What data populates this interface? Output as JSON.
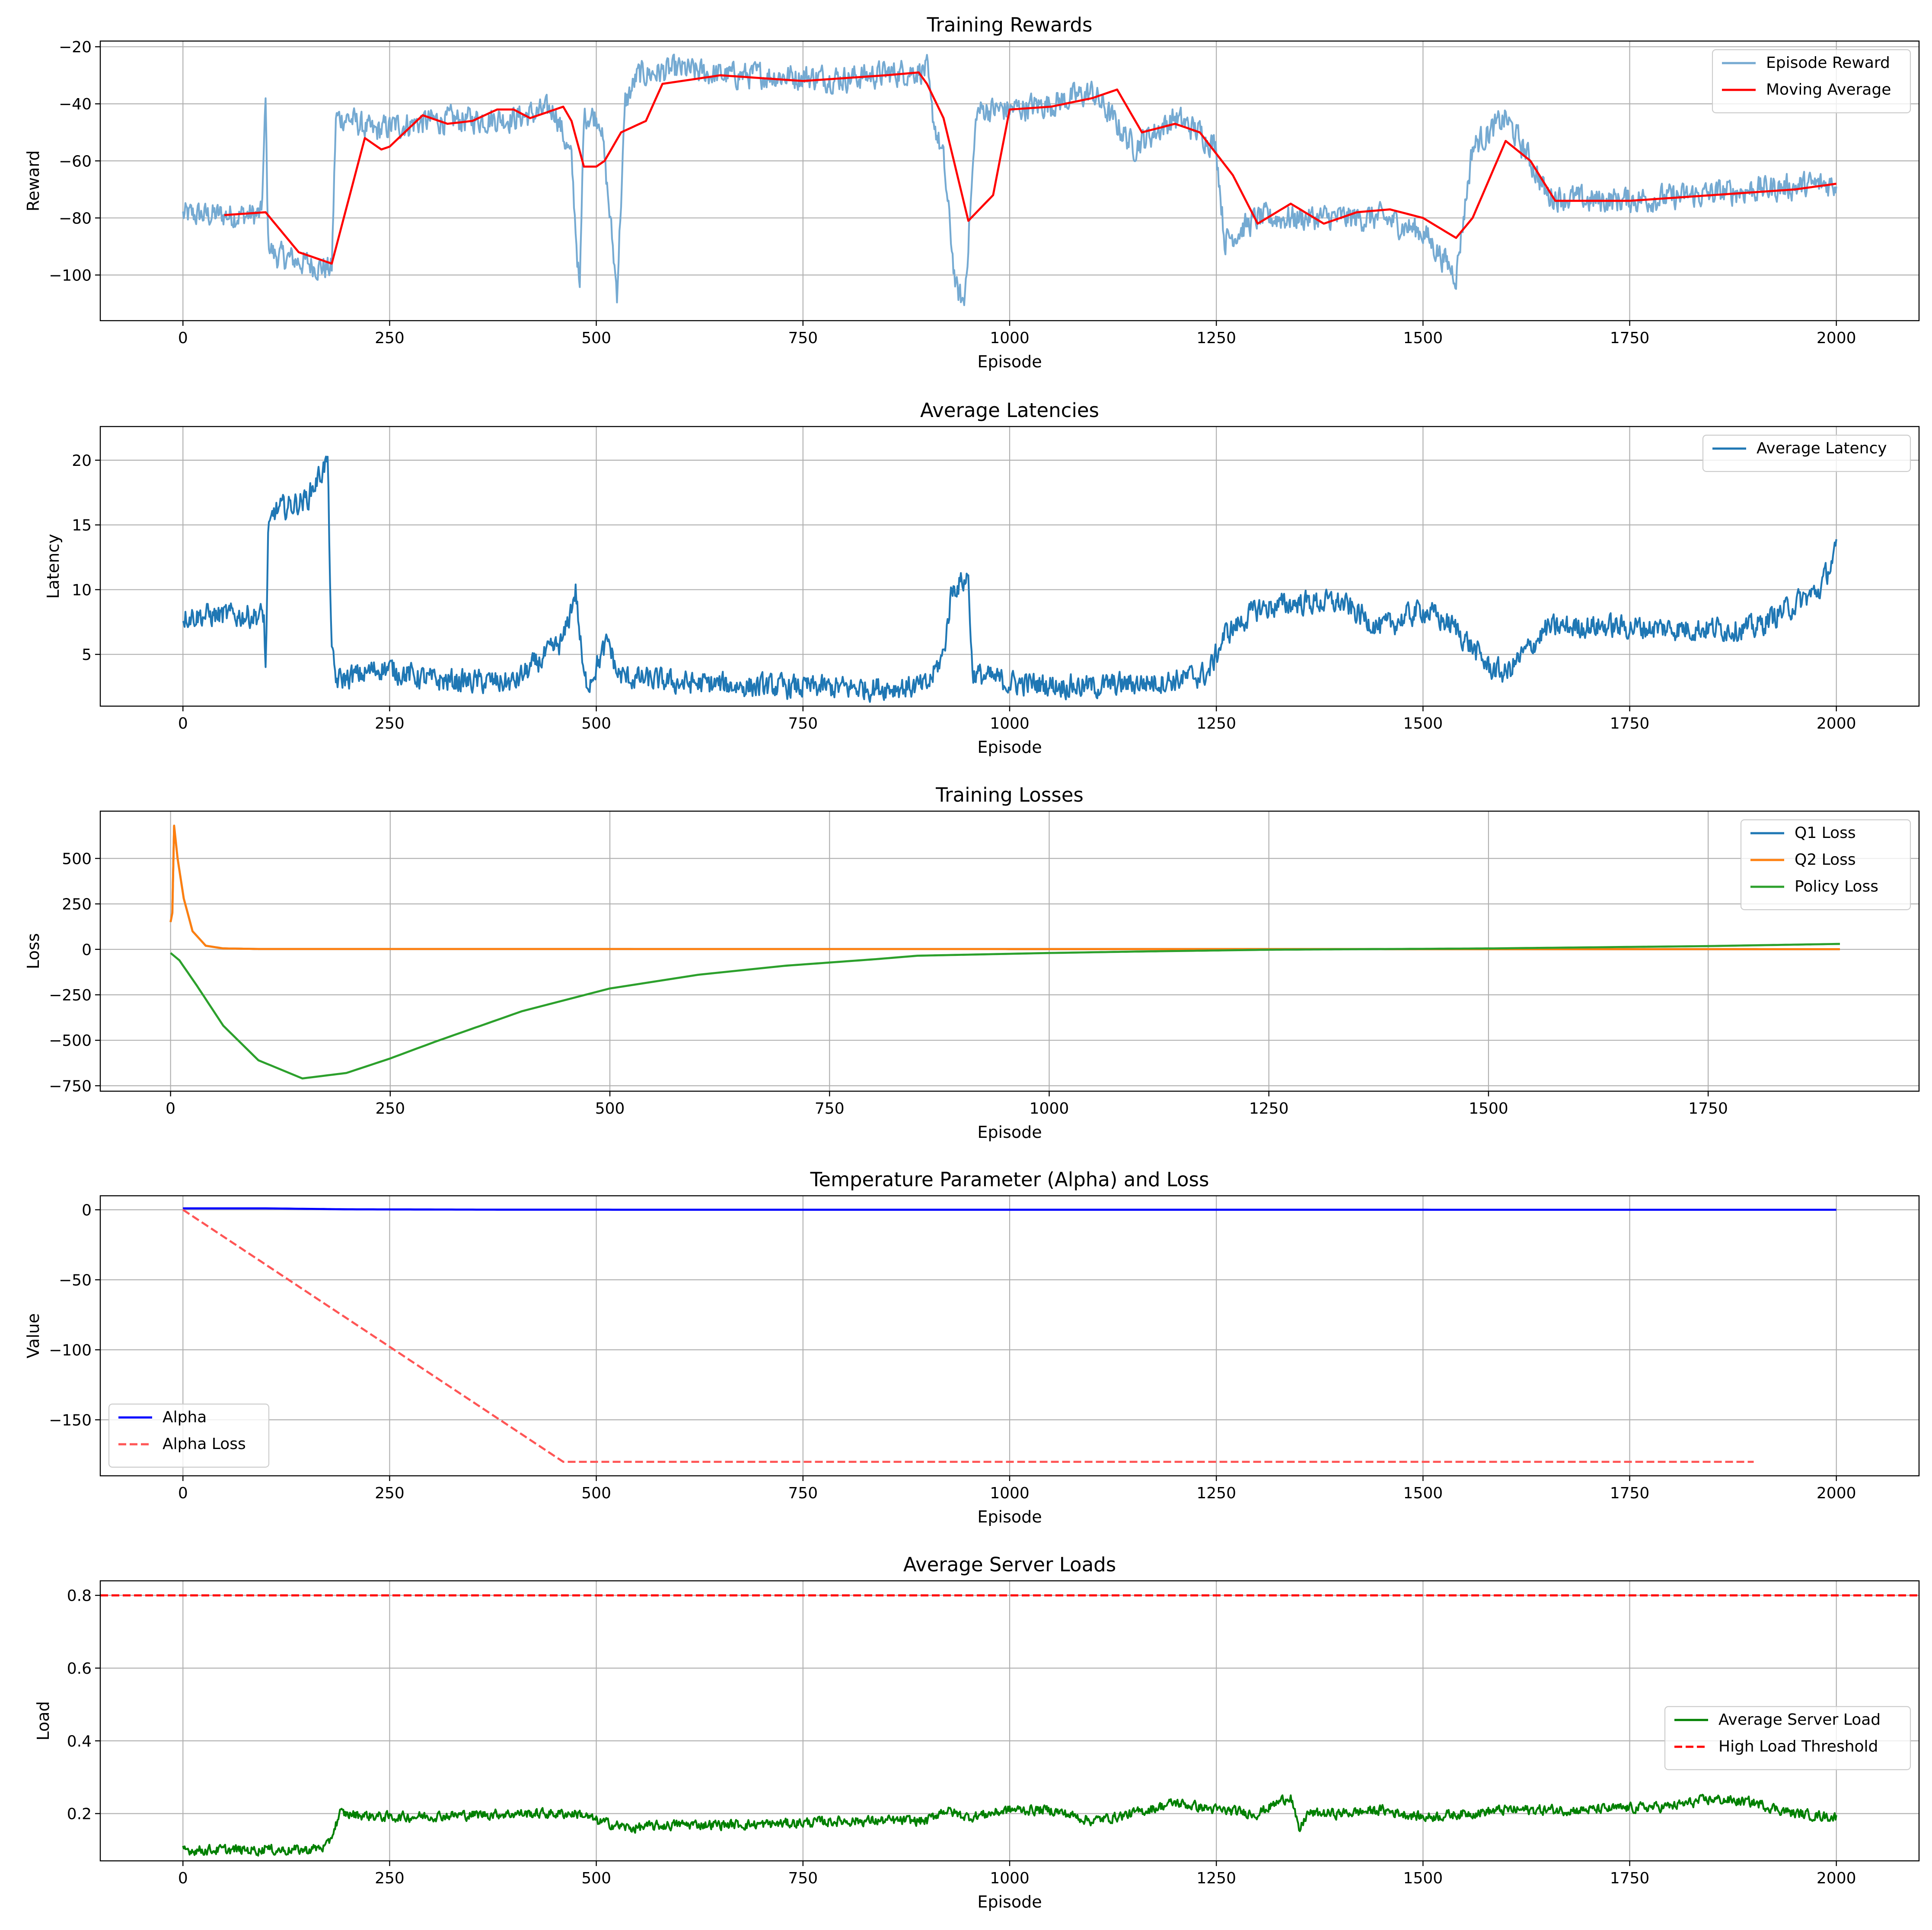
{
  "chart_data": [
    {
      "type": "line",
      "title": "Training Rewards",
      "xlabel": "Episode",
      "ylabel": "Reward",
      "xlim": [
        -100,
        2100
      ],
      "ylim": [
        -116,
        -18
      ],
      "xticks": [
        0,
        250,
        500,
        750,
        1000,
        1250,
        1500,
        1750,
        2000
      ],
      "yticks": [
        -100,
        -80,
        -60,
        -40,
        -20
      ],
      "grid": true,
      "legend": "top-right",
      "series": [
        {
          "name": "Episode Reward",
          "color": "#75aad2",
          "dash": "solid",
          "noise": 4,
          "x": [
            0,
            95,
            100,
            103,
            110,
            180,
            185,
            200,
            230,
            250,
            300,
            400,
            450,
            470,
            480,
            485,
            495,
            505,
            515,
            525,
            535,
            550,
            600,
            650,
            700,
            800,
            900,
            905,
            920,
            935,
            945,
            960,
            970,
            1000,
            1050,
            1100,
            1150,
            1200,
            1230,
            1250,
            1260,
            1300,
            1350,
            1400,
            1450,
            1500,
            1540,
            1560,
            1580,
            1600,
            1630,
            1650,
            1700,
            1800,
            1900,
            2000
          ],
          "y": [
            -79,
            -79,
            -40,
            -88,
            -93,
            -98,
            -45,
            -45,
            -50,
            -48,
            -46,
            -45,
            -42,
            -60,
            -107,
            -44,
            -44,
            -45,
            -75,
            -106,
            -40,
            -30,
            -28,
            -30,
            -30,
            -31,
            -28,
            -42,
            -60,
            -105,
            -110,
            -43,
            -42,
            -42,
            -40,
            -36,
            -55,
            -45,
            -50,
            -55,
            -88,
            -80,
            -80,
            -80,
            -80,
            -85,
            -100,
            -55,
            -50,
            -45,
            -60,
            -72,
            -74,
            -73,
            -70,
            -68
          ]
        },
        {
          "name": "Moving Average",
          "color": "#ff0000",
          "dash": "solid",
          "noise": 0,
          "x": [
            50,
            100,
            140,
            180,
            220,
            240,
            250,
            290,
            320,
            350,
            380,
            400,
            420,
            450,
            460,
            470,
            485,
            500,
            510,
            530,
            560,
            580,
            650,
            750,
            850,
            890,
            900,
            920,
            950,
            980,
            1000,
            1050,
            1100,
            1130,
            1160,
            1200,
            1230,
            1270,
            1300,
            1340,
            1380,
            1420,
            1460,
            1500,
            1540,
            1560,
            1600,
            1630,
            1660,
            1750,
            1850,
            1950,
            2000
          ],
          "y": [
            -79,
            -78,
            -92,
            -96,
            -52,
            -56,
            -55,
            -44,
            -47,
            -46,
            -42,
            -42,
            -45,
            -42,
            -41,
            -46,
            -62,
            -62,
            -60,
            -50,
            -46,
            -33,
            -30,
            -32,
            -30,
            -29,
            -33,
            -45,
            -81,
            -72,
            -42,
            -41,
            -38,
            -35,
            -50,
            -47,
            -50,
            -65,
            -82,
            -75,
            -82,
            -78,
            -77,
            -80,
            -87,
            -80,
            -53,
            -60,
            -74,
            -74,
            -72,
            -70,
            -68
          ]
        }
      ]
    },
    {
      "type": "line",
      "title": "Average Latencies",
      "xlabel": "Episode",
      "ylabel": "Latency",
      "xlim": [
        -100,
        2100
      ],
      "ylim": [
        1,
        22.6
      ],
      "xticks": [
        0,
        250,
        500,
        750,
        1000,
        1250,
        1500,
        1750,
        2000
      ],
      "yticks": [
        5,
        10,
        15,
        20
      ],
      "grid": true,
      "legend": "top-right",
      "series": [
        {
          "name": "Average Latency",
          "color": "#1f77b4",
          "dash": "solid",
          "noise": 0.8,
          "x": [
            0,
            98,
            100,
            103,
            110,
            150,
            175,
            180,
            185,
            220,
            240,
            300,
            400,
            460,
            475,
            485,
            490,
            515,
            525,
            535,
            600,
            700,
            800,
            900,
            920,
            930,
            950,
            955,
            1000,
            1100,
            1200,
            1240,
            1260,
            1300,
            1350,
            1400,
            1450,
            1500,
            1540,
            1580,
            1600,
            1650,
            1700,
            1800,
            1900,
            1980,
            2000
          ],
          "y": [
            8,
            8,
            3.5,
            14,
            16,
            17,
            20,
            5,
            3,
            3.5,
            4,
            3,
            2.8,
            6,
            10,
            3,
            2.8,
            6,
            3.5,
            3.2,
            2.8,
            2.5,
            2.4,
            2.5,
            5,
            10,
            11,
            3.5,
            2.8,
            2.5,
            3,
            3.5,
            6.5,
            8.5,
            9,
            9,
            7,
            8.5,
            7,
            4,
            3.5,
            7,
            7.2,
            7,
            7,
            10,
            13
          ]
        }
      ]
    },
    {
      "type": "line",
      "title": "Training Losses",
      "xlabel": "Episode",
      "ylabel": "Loss",
      "xlim": [
        -80,
        1990
      ],
      "ylim": [
        -780,
        760
      ],
      "xticks": [
        0,
        250,
        500,
        750,
        1000,
        1250,
        1500,
        1750
      ],
      "yticks": [
        -750,
        -500,
        -250,
        0,
        250,
        500
      ],
      "grid": true,
      "legend": "top-right",
      "series": [
        {
          "name": "Q1 Loss",
          "color": "#1f77b4",
          "dash": "solid",
          "noise": 0,
          "x": [
            0,
            2,
            4,
            8,
            15,
            25,
            40,
            60,
            100,
            1900
          ],
          "y": [
            150,
            200,
            680,
            500,
            280,
            100,
            20,
            5,
            2,
            1
          ]
        },
        {
          "name": "Q2 Loss",
          "color": "#ff7f0e",
          "dash": "solid",
          "noise": 0,
          "x": [
            0,
            2,
            4,
            8,
            15,
            25,
            40,
            60,
            100,
            1900
          ],
          "y": [
            150,
            200,
            680,
            500,
            280,
            100,
            20,
            5,
            2,
            1
          ]
        },
        {
          "name": "Policy Loss",
          "color": "#2ca02c",
          "dash": "solid",
          "noise": 0,
          "x": [
            0,
            10,
            30,
            60,
            100,
            150,
            200,
            250,
            300,
            400,
            500,
            600,
            700,
            800,
            850,
            900,
            1000,
            1100,
            1250,
            1500,
            1750,
            1900
          ],
          "y": [
            -20,
            -60,
            -200,
            -420,
            -610,
            -710,
            -680,
            -600,
            -510,
            -340,
            -215,
            -140,
            -90,
            -55,
            -35,
            -30,
            -20,
            -12,
            -2,
            5,
            18,
            30
          ]
        }
      ]
    },
    {
      "type": "line",
      "title": "Temperature Parameter (Alpha) and Loss",
      "xlabel": "Episode",
      "ylabel": "Value",
      "xlim": [
        -100,
        2100
      ],
      "ylim": [
        -190,
        10
      ],
      "xticks": [
        0,
        250,
        500,
        750,
        1000,
        1250,
        1500,
        1750,
        2000
      ],
      "yticks": [
        -150,
        -100,
        -50,
        0
      ],
      "grid": true,
      "legend": "bottom-left",
      "series": [
        {
          "name": "Alpha",
          "color": "#0000ff",
          "dash": "solid",
          "noise": 0,
          "x": [
            0,
            100,
            200,
            400,
            2000
          ],
          "y": [
            1,
            1,
            0.3,
            0.05,
            0
          ]
        },
        {
          "name": "Alpha Loss",
          "color": "#ff5555",
          "dash": "dashed",
          "noise": 0,
          "x": [
            0,
            460,
            1900
          ],
          "y": [
            0,
            -180,
            -180
          ]
        }
      ]
    },
    {
      "type": "line",
      "title": "Average Server Loads",
      "xlabel": "Episode",
      "ylabel": "Load",
      "xlim": [
        -100,
        2100
      ],
      "ylim": [
        0.07,
        0.84
      ],
      "xticks": [
        0,
        250,
        500,
        750,
        1000,
        1250,
        1500,
        1750,
        2000
      ],
      "yticks": [
        0.2,
        0.4,
        0.6,
        0.8
      ],
      "grid": true,
      "legend": "center-right",
      "series": [
        {
          "name": "Average Server Load",
          "color": "#008000",
          "dash": "solid",
          "noise": 0.012,
          "x": [
            0,
            98,
            100,
            103,
            150,
            175,
            190,
            250,
            400,
            480,
            500,
            540,
            600,
            700,
            800,
            900,
            920,
            950,
            1000,
            1050,
            1100,
            1150,
            1200,
            1250,
            1300,
            1340,
            1350,
            1360,
            1400,
            1450,
            1500,
            1550,
            1600,
            1700,
            1800,
            1850,
            1900,
            1950,
            2000
          ],
          "y": [
            0.1,
            0.1,
            0.12,
            0.1,
            0.1,
            0.11,
            0.2,
            0.19,
            0.2,
            0.2,
            0.18,
            0.16,
            0.17,
            0.17,
            0.18,
            0.18,
            0.21,
            0.19,
            0.21,
            0.21,
            0.18,
            0.2,
            0.23,
            0.21,
            0.2,
            0.25,
            0.15,
            0.2,
            0.2,
            0.21,
            0.19,
            0.2,
            0.21,
            0.21,
            0.22,
            0.24,
            0.23,
            0.2,
            0.19
          ]
        },
        {
          "name": "High Load Threshold",
          "color": "#ff0000",
          "dash": "dashed",
          "noise": 0,
          "x": [
            -100,
            2100
          ],
          "y": [
            0.8,
            0.8
          ]
        }
      ]
    }
  ]
}
